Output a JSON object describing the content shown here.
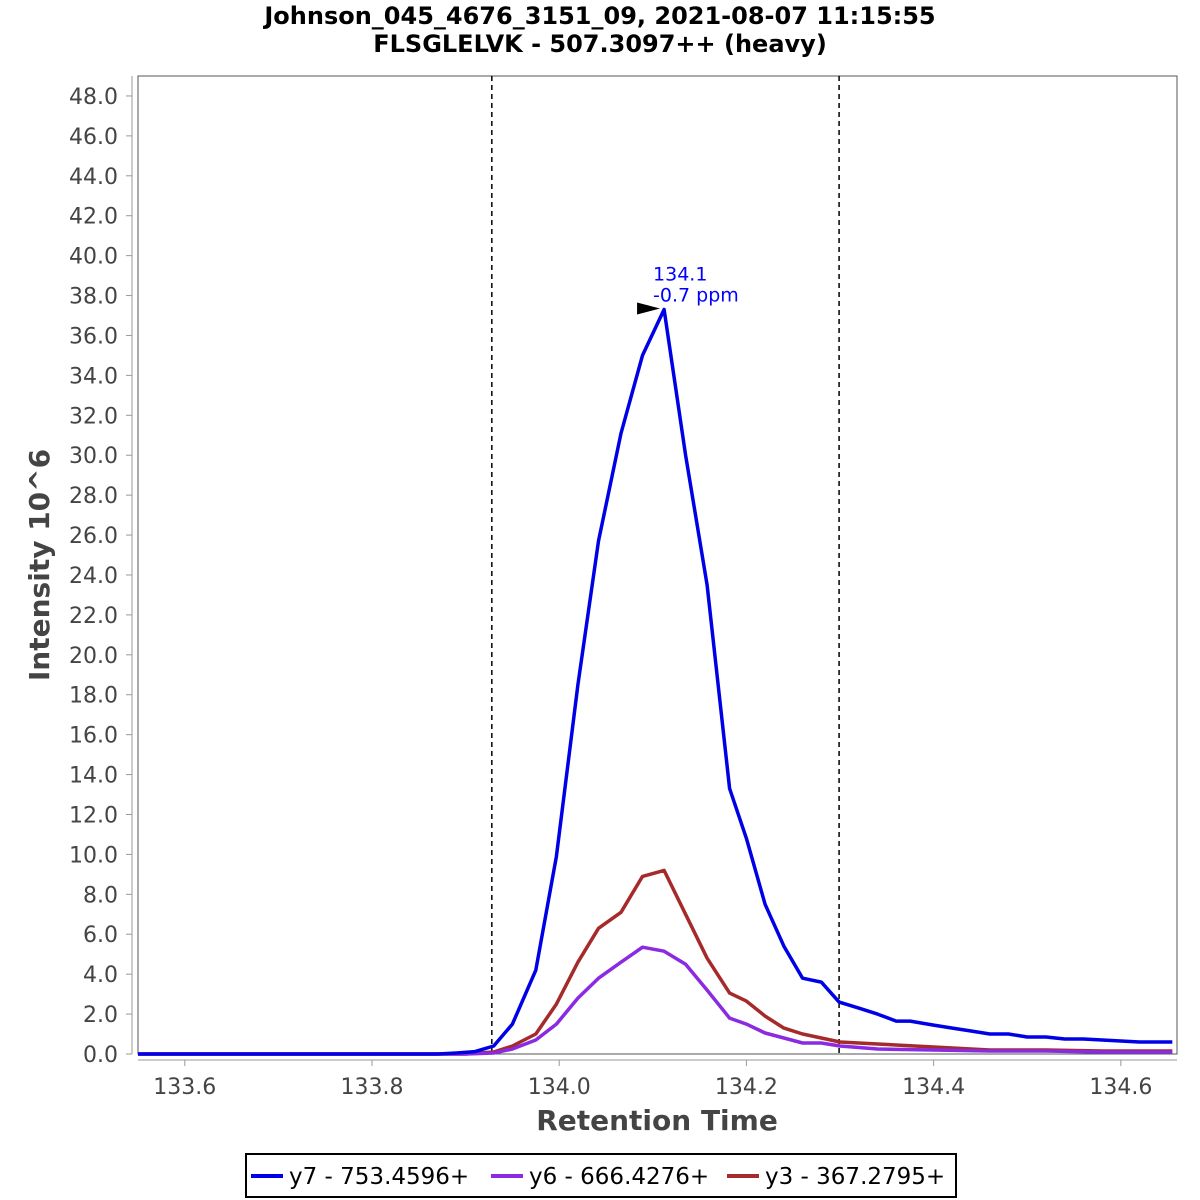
{
  "chart_data": {
    "type": "line",
    "title": "Johnson_045_4676_3151_09, 2021-08-07 11:15:55",
    "subtitle": "FLSGLELVK - 507.3097++ (heavy)",
    "xlabel": "Retention Time",
    "ylabel": "Intensity 10^6",
    "xlim": [
      133.55,
      134.66
    ],
    "ylim": [
      0,
      49
    ],
    "xticks": [
      133.6,
      133.8,
      134.0,
      134.2,
      134.4,
      134.6
    ],
    "xtick_labels": [
      "133.6",
      "133.8",
      "134.0",
      "134.2",
      "134.4",
      "134.6"
    ],
    "yticks": [
      0,
      2,
      4,
      6,
      8,
      10,
      12,
      14,
      16,
      18,
      20,
      22,
      24,
      26,
      28,
      30,
      32,
      34,
      36,
      38,
      40,
      42,
      44,
      46,
      48
    ],
    "ytick_labels": [
      "0.0",
      "2.0",
      "4.0",
      "6.0",
      "8.0",
      "10.0",
      "12.0",
      "14.0",
      "16.0",
      "18.0",
      "20.0",
      "22.0",
      "24.0",
      "26.0",
      "28.0",
      "30.0",
      "32.0",
      "34.0",
      "36.0",
      "38.0",
      "40.0",
      "42.0",
      "44.0",
      "46.0",
      "48.0"
    ],
    "boundaries": [
      133.928,
      134.299
    ],
    "annotation": {
      "x": 134.112,
      "y": 37.3,
      "line1": "134.1",
      "line2": "-0.7 ppm",
      "color": "#0000ff"
    },
    "series": [
      {
        "name": "y7 - 753.4596+",
        "color": "#0000e6",
        "x": [
          133.55,
          133.6,
          133.7,
          133.8,
          133.85,
          133.87,
          133.89,
          133.91,
          133.93,
          133.95,
          133.975,
          133.997,
          134.02,
          134.042,
          134.066,
          134.089,
          134.112,
          134.135,
          134.158,
          134.182,
          134.2,
          134.22,
          134.24,
          134.26,
          134.28,
          134.299,
          134.32,
          134.34,
          134.36,
          134.375,
          134.4,
          134.42,
          134.44,
          134.46,
          134.48,
          134.5,
          134.52,
          134.54,
          134.56,
          134.58,
          134.6,
          134.62,
          134.64,
          134.655
        ],
        "y": [
          0,
          0,
          0,
          0,
          0,
          0,
          0.05,
          0.12,
          0.4,
          1.5,
          4.2,
          9.9,
          18.5,
          25.7,
          31.1,
          35,
          37.3,
          30,
          23.5,
          13.3,
          10.8,
          7.5,
          5.4,
          3.8,
          3.6,
          2.6,
          2.3,
          2.0,
          1.65,
          1.65,
          1.45,
          1.3,
          1.15,
          1.0,
          1.0,
          0.85,
          0.85,
          0.75,
          0.75,
          0.7,
          0.65,
          0.6,
          0.6,
          0.6
        ]
      },
      {
        "name": "y6 - 666.4276+",
        "color": "#8a2be2",
        "x": [
          133.55,
          133.6,
          133.7,
          133.8,
          133.85,
          133.9,
          133.93,
          133.95,
          133.975,
          133.997,
          134.02,
          134.042,
          134.066,
          134.089,
          134.112,
          134.135,
          134.158,
          134.182,
          134.2,
          134.22,
          134.24,
          134.26,
          134.28,
          134.3,
          134.34,
          134.4,
          134.46,
          134.52,
          134.58,
          134.655
        ],
        "y": [
          0,
          0,
          0,
          0,
          0,
          0,
          0.05,
          0.25,
          0.7,
          1.5,
          2.8,
          3.8,
          4.6,
          5.35,
          5.15,
          4.5,
          3.2,
          1.8,
          1.5,
          1.05,
          0.8,
          0.55,
          0.55,
          0.4,
          0.25,
          0.2,
          0.15,
          0.15,
          0.1,
          0.1
        ]
      },
      {
        "name": "y3 - 367.2795+",
        "color": "#a52a2a",
        "x": [
          133.55,
          133.6,
          133.7,
          133.8,
          133.85,
          133.9,
          133.93,
          133.95,
          133.975,
          133.997,
          134.02,
          134.042,
          134.066,
          134.089,
          134.112,
          134.135,
          134.158,
          134.182,
          134.2,
          134.22,
          134.24,
          134.26,
          134.28,
          134.3,
          134.34,
          134.4,
          134.46,
          134.52,
          134.58,
          134.655
        ],
        "y": [
          0,
          0,
          0,
          0,
          0,
          0,
          0.1,
          0.4,
          1.0,
          2.5,
          4.6,
          6.3,
          7.1,
          8.9,
          9.2,
          7.0,
          4.8,
          3.05,
          2.65,
          1.9,
          1.3,
          1.0,
          0.8,
          0.6,
          0.5,
          0.35,
          0.2,
          0.2,
          0.15,
          0.15
        ]
      }
    ],
    "legend_position": "bottom-center"
  }
}
